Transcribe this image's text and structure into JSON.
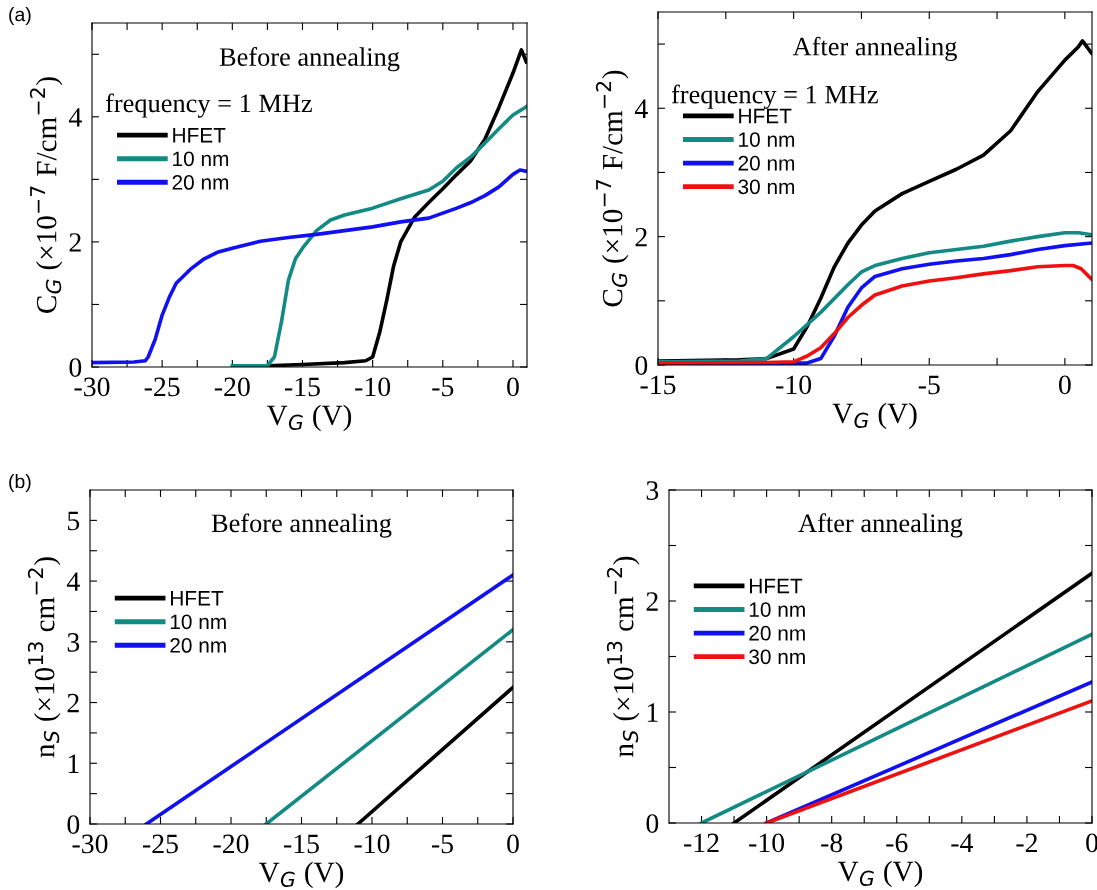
{
  "chart_data": [
    {
      "type": "line",
      "title": "Before annealing",
      "xlabel": "V$_{G}$ (V)",
      "ylabel": "C$_{G}$ (×10$^{−7}$ F/cm$^{−2}$)",
      "annotations": [
        "(a)",
        "frequency = 1 MHz"
      ],
      "xlim": [
        -30,
        1
      ],
      "ylim": [
        0,
        5.5
      ],
      "xticks": [
        -30,
        {
          "value": -27.5,
          "label": null
        },
        -25,
        {
          "value": -22.5,
          "label": null
        },
        -20,
        {
          "value": -17.5,
          "label": null
        },
        -15,
        {
          "value": -12.5,
          "label": null
        },
        -10,
        {
          "value": -7.5,
          "label": null
        },
        -5,
        {
          "value": -2.5,
          "label": null
        },
        0
      ],
      "yticks": [
        0,
        {
          "value": 1,
          "label": null
        },
        2,
        {
          "value": 3,
          "label": null
        },
        4,
        {
          "value": 5,
          "label": null
        }
      ],
      "legend": "left",
      "marker": "none",
      "line_style": "solid",
      "grid": false,
      "series": [
        {
          "name": "HFET",
          "color": "#000000",
          "x": [
            -17.5,
            -15,
            -12,
            -10.5,
            -10,
            -9.5,
            -9,
            -8.5,
            -8,
            -7,
            -6,
            -5,
            -4,
            -3,
            -2,
            -1,
            0,
            0.6,
            0.95
          ],
          "values": [
            0.02,
            0.04,
            0.07,
            0.1,
            0.16,
            0.55,
            1.06,
            1.62,
            2.0,
            2.4,
            2.63,
            2.85,
            3.08,
            3.3,
            3.64,
            4.15,
            4.7,
            5.07,
            4.88
          ]
        },
        {
          "name": "10 nm",
          "color": "#138a84",
          "x": [
            -20,
            -17.5,
            -17,
            -16.5,
            -16,
            -15.5,
            -15,
            -14,
            -13,
            -12,
            -10,
            -8,
            -6,
            -5,
            -4,
            -3,
            -2,
            -1,
            0,
            0.95
          ],
          "values": [
            0.02,
            0.02,
            0.16,
            0.72,
            1.39,
            1.73,
            1.9,
            2.18,
            2.35,
            2.43,
            2.54,
            2.69,
            2.83,
            2.97,
            3.19,
            3.36,
            3.58,
            3.81,
            4.03,
            4.16
          ]
        },
        {
          "name": "20 nm",
          "color": "#1010f0",
          "x": [
            -30,
            -27,
            -26.2,
            -26,
            -25.5,
            -25,
            -24.5,
            -24,
            -23,
            -22,
            -21,
            -20,
            -18,
            -16,
            -14,
            -12,
            -10,
            -8,
            -6,
            -5,
            -4,
            -3,
            -2,
            -1,
            0,
            0.5,
            0.95
          ],
          "values": [
            0.07,
            0.08,
            0.1,
            0.16,
            0.44,
            0.83,
            1.11,
            1.34,
            1.56,
            1.73,
            1.84,
            1.9,
            2.01,
            2.07,
            2.12,
            2.18,
            2.24,
            2.32,
            2.38,
            2.46,
            2.54,
            2.63,
            2.74,
            2.88,
            3.08,
            3.15,
            3.13
          ]
        }
      ]
    },
    {
      "type": "line",
      "title": "After annealing",
      "xlabel": "V$_{G}$ (V)",
      "ylabel": "C$_{G}$ (×10$^{−7}$ F/cm$^{−2}$)",
      "annotations": [
        "frequency = 1 MHz"
      ],
      "xlim": [
        -15,
        1
      ],
      "ylim": [
        0,
        5.5
      ],
      "xticks": [
        -15,
        {
          "value": -12.5,
          "label": null
        },
        -10,
        {
          "value": -7.5,
          "label": null
        },
        -5,
        {
          "value": -2.5,
          "label": null
        },
        0
      ],
      "yticks": [
        0,
        {
          "value": 1,
          "label": null
        },
        2,
        {
          "value": 3,
          "label": null
        },
        4,
        {
          "value": 5,
          "label": null
        }
      ],
      "legend": "left",
      "marker": "none",
      "line_style": "solid",
      "grid": false,
      "series": [
        {
          "name": "HFET",
          "color": "#000000",
          "x": [
            -15,
            -12,
            -11,
            -10,
            -9.5,
            -9,
            -8.5,
            -8,
            -7.5,
            -7,
            -6,
            -5,
            -4,
            -3,
            -2,
            -1,
            0,
            0.5,
            0.65,
            0.98
          ],
          "values": [
            0.06,
            0.08,
            0.1,
            0.25,
            0.6,
            1.04,
            1.53,
            1.9,
            2.18,
            2.4,
            2.67,
            2.86,
            3.05,
            3.27,
            3.65,
            4.26,
            4.75,
            4.96,
            5.05,
            4.86
          ]
        },
        {
          "name": "10 nm",
          "color": "#138a84",
          "x": [
            -15,
            -12,
            -11,
            -10,
            -9,
            -8,
            -7.5,
            -7,
            -6,
            -5,
            -4,
            -3,
            -2,
            -1,
            0,
            0.5,
            0.98
          ],
          "values": [
            0.05,
            0.06,
            0.1,
            0.44,
            0.82,
            1.25,
            1.45,
            1.55,
            1.66,
            1.75,
            1.8,
            1.85,
            1.93,
            2.0,
            2.06,
            2.06,
            2.03
          ]
        },
        {
          "name": "20 nm",
          "color": "#1010f0",
          "x": [
            -15,
            -10,
            -9.5,
            -9,
            -8.5,
            -8,
            -7.5,
            -7,
            -6,
            -5,
            -4,
            -3,
            -2,
            -1,
            0,
            0.98
          ],
          "values": [
            0.02,
            0.03,
            0.03,
            0.1,
            0.45,
            0.9,
            1.2,
            1.38,
            1.5,
            1.57,
            1.62,
            1.66,
            1.72,
            1.8,
            1.86,
            1.9
          ]
        },
        {
          "name": "30 nm",
          "color": "#f01010",
          "x": [
            -15,
            -11,
            -10,
            -9.5,
            -9,
            -8.5,
            -8,
            -7.5,
            -7,
            -6,
            -5,
            -4,
            -3,
            -2,
            -1,
            0,
            0.3,
            0.6,
            0.98
          ],
          "values": [
            0.03,
            0.04,
            0.05,
            0.14,
            0.27,
            0.49,
            0.74,
            0.93,
            1.09,
            1.23,
            1.31,
            1.36,
            1.42,
            1.47,
            1.53,
            1.55,
            1.55,
            1.5,
            1.34
          ]
        }
      ]
    },
    {
      "type": "line",
      "title": "Before annealing",
      "xlabel": "V$_{G}$ (V)",
      "ylabel": "n$_{S}$ (×10$^{13}$ cm$^{−2}$)",
      "annotations": [
        "(b)"
      ],
      "xlim": [
        -30,
        0
      ],
      "ylim": [
        0,
        5.5
      ],
      "xticks": [
        -30,
        {
          "value": -27.5,
          "label": null
        },
        -25,
        {
          "value": -22.5,
          "label": null
        },
        -20,
        {
          "value": -17.5,
          "label": null
        },
        -15,
        {
          "value": -12.5,
          "label": null
        },
        -10,
        {
          "value": -7.5,
          "label": null
        },
        -5,
        {
          "value": -2.5,
          "label": null
        },
        0
      ],
      "yticks": [
        0,
        {
          "value": 0.5,
          "label": null
        },
        1,
        {
          "value": 1.5,
          "label": null
        },
        2,
        {
          "value": 2.5,
          "label": null
        },
        3,
        {
          "value": 3.5,
          "label": null
        },
        4,
        {
          "value": 4.5,
          "label": null
        },
        5
      ],
      "legend": "left",
      "marker": "none",
      "line_style": "solid",
      "grid": false,
      "series": [
        {
          "name": "HFET",
          "color": "#000000",
          "x": [
            -11,
            0
          ],
          "values": [
            0,
            2.25
          ]
        },
        {
          "name": "10 nm",
          "color": "#138a84",
          "x": [
            -17.5,
            0
          ],
          "values": [
            0,
            3.2
          ]
        },
        {
          "name": "20 nm",
          "color": "#1010f0",
          "x": [
            -26,
            0
          ],
          "values": [
            0,
            4.1
          ]
        }
      ]
    },
    {
      "type": "line",
      "title": "After annealing",
      "xlabel": "V$_{G}$ (V)",
      "ylabel": "n$_{S}$ (×10$^{13}$ cm$^{−2}$)",
      "xlim": [
        -13,
        0
      ],
      "ylim": [
        0,
        3
      ],
      "xticks": [
        -12,
        {
          "value": -11,
          "label": null
        },
        -10,
        {
          "value": -9,
          "label": null
        },
        -8,
        {
          "value": -7,
          "label": null
        },
        -6,
        {
          "value": -5,
          "label": null
        },
        -4,
        {
          "value": -3,
          "label": null
        },
        -2,
        {
          "value": -1,
          "label": null
        },
        0
      ],
      "yticks": [
        0,
        {
          "value": 0.5,
          "label": null
        },
        1,
        {
          "value": 1.5,
          "label": null
        },
        2,
        {
          "value": 2.5,
          "label": null
        },
        3
      ],
      "legend": "left",
      "marker": "none",
      "line_style": "solid",
      "grid": false,
      "series": [
        {
          "name": "HFET",
          "color": "#000000",
          "x": [
            -11,
            0
          ],
          "values": [
            0,
            2.25
          ]
        },
        {
          "name": "10 nm",
          "color": "#138a84",
          "x": [
            -12,
            0
          ],
          "values": [
            0,
            1.7
          ]
        },
        {
          "name": "20 nm",
          "color": "#1010f0",
          "x": [
            -10,
            0
          ],
          "values": [
            0,
            1.27
          ]
        },
        {
          "name": "30 nm",
          "color": "#f01010",
          "x": [
            -10,
            0
          ],
          "values": [
            0,
            1.1
          ]
        }
      ]
    }
  ]
}
